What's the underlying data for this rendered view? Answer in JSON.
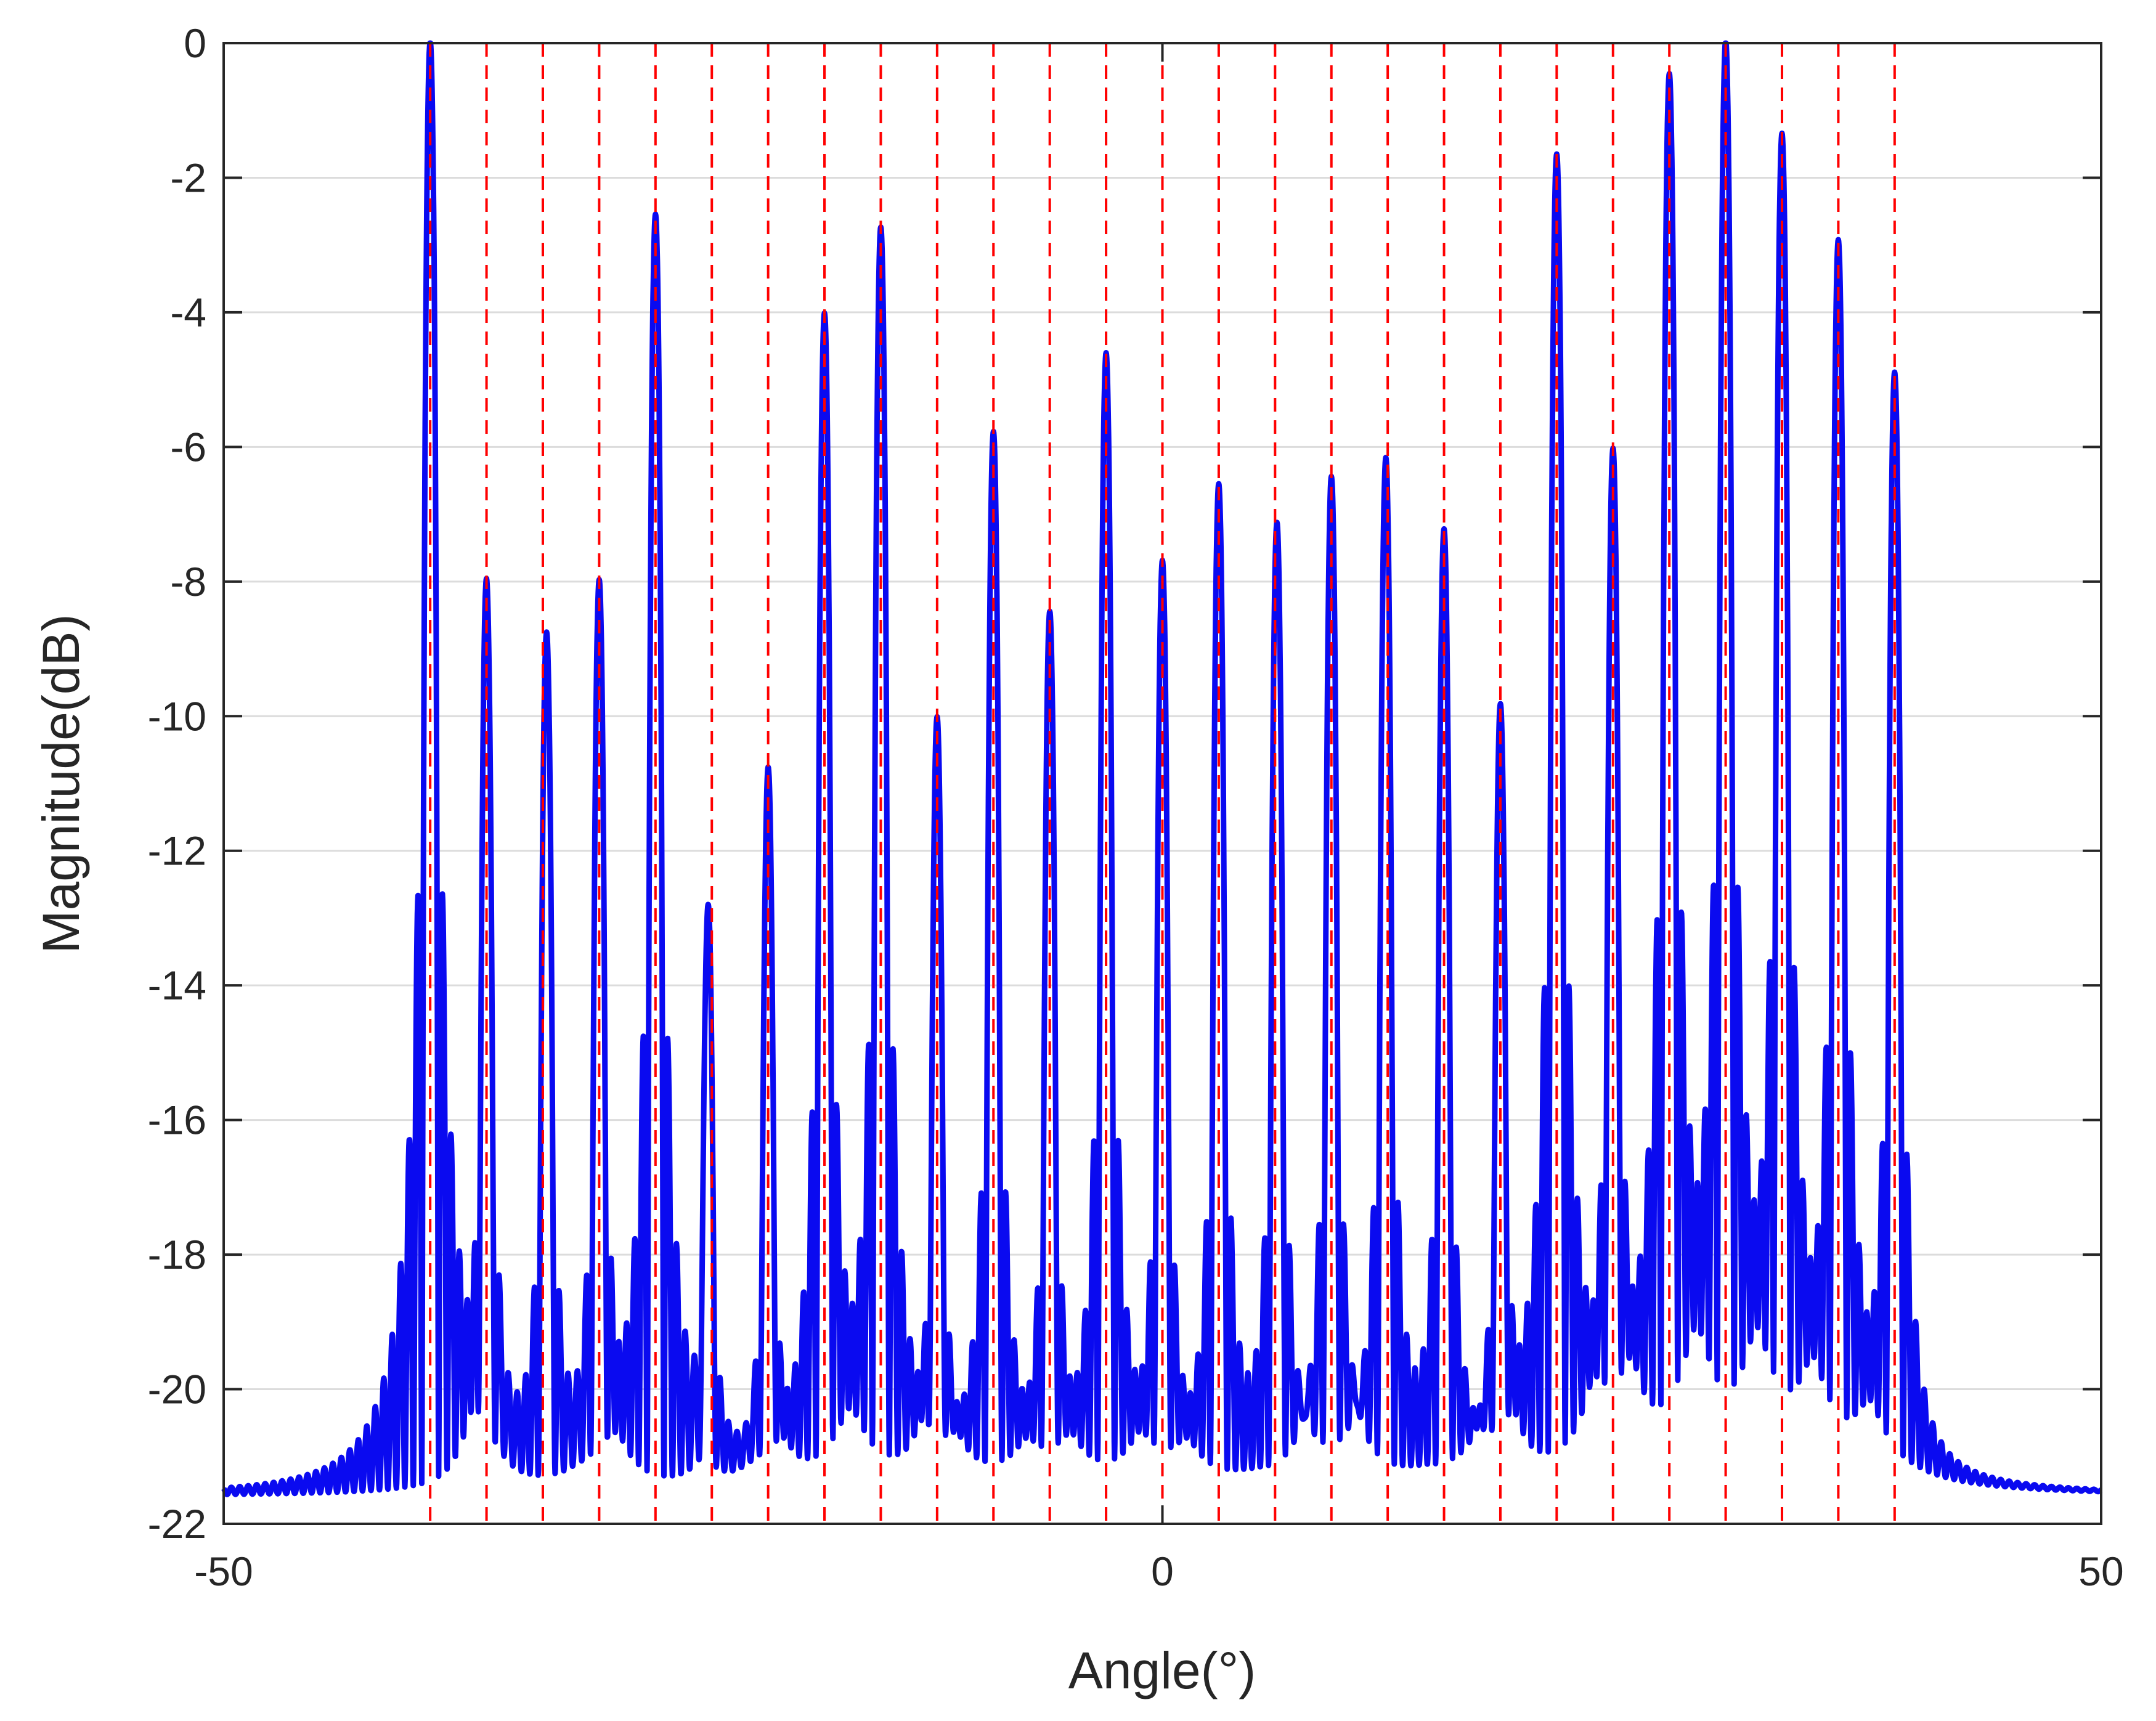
{
  "chart_data": {
    "type": "line",
    "xlabel": "Angle(°)",
    "ylabel": "Magnitude(dB)",
    "xlim": [
      -50,
      50
    ],
    "ylim": [
      -22,
      0
    ],
    "xticks": [
      -50,
      0,
      50
    ],
    "yticks": [
      0,
      -2,
      -4,
      -6,
      -8,
      -10,
      -12,
      -14,
      -16,
      -18,
      -20,
      -22
    ],
    "grid": "horizontal",
    "colors": {
      "spectrum": "#0a0af0",
      "reference": "#ff0000",
      "grid": "#dcdcdc",
      "axes": "#262626"
    },
    "reference_angles": [
      -39,
      -36,
      -33,
      -30,
      -27,
      -24,
      -21,
      -18,
      -15,
      -12,
      -9,
      -6,
      -3,
      0,
      3,
      6,
      9,
      12,
      15,
      18,
      21,
      24,
      27,
      30,
      33,
      36,
      39
    ],
    "series": [
      {
        "style": "solid",
        "noise_floor": -21.6,
        "peaks": [
          {
            "angle": -39,
            "value": 0
          },
          {
            "angle": -36,
            "value": -8.2
          },
          {
            "angle": -32.8,
            "value": -9.0
          },
          {
            "angle": -30,
            "value": -8.2
          },
          {
            "angle": -27,
            "value": -2.6
          },
          {
            "angle": -24.2,
            "value": -13.5
          },
          {
            "angle": -21,
            "value": -11.2
          },
          {
            "angle": -18,
            "value": -4.1
          },
          {
            "angle": -15,
            "value": -2.8
          },
          {
            "angle": -12,
            "value": -10.4
          },
          {
            "angle": -9,
            "value": -5.9
          },
          {
            "angle": -6,
            "value": -8.7
          },
          {
            "angle": -3,
            "value": -4.7
          },
          {
            "angle": 0,
            "value": -7.9
          },
          {
            "angle": 3,
            "value": -6.7
          },
          {
            "angle": 6.1,
            "value": -7.3
          },
          {
            "angle": 9,
            "value": -6.6
          },
          {
            "angle": 11.9,
            "value": -6.3
          },
          {
            "angle": 15,
            "value": -7.4
          },
          {
            "angle": 18,
            "value": -10.2
          },
          {
            "angle": 21,
            "value": -1.7
          },
          {
            "angle": 24,
            "value": -6.2
          },
          {
            "angle": 27,
            "value": -0.5
          },
          {
            "angle": 30,
            "value": 0
          },
          {
            "angle": 33,
            "value": -1.4
          },
          {
            "angle": 36,
            "value": -3.0
          },
          {
            "angle": 39,
            "value": -5.0
          }
        ]
      }
    ]
  }
}
